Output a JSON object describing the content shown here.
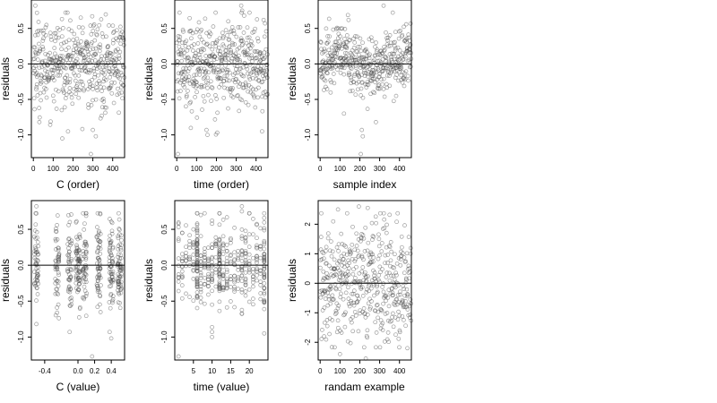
{
  "chart_data": [
    {
      "type": "scatter",
      "xlabel": "C (order)",
      "ylabel": "residuals",
      "xticks": [
        0,
        100,
        200,
        300,
        400
      ],
      "yticks": [
        0.5,
        0.0,
        -0.5,
        -1.0
      ],
      "ytick_labels": [
        "0.5",
        "0.0",
        "-0.5",
        "-1.0"
      ],
      "xlim": [
        -10,
        460
      ],
      "ylim": [
        -1.32,
        0.9
      ],
      "reference_line_y": 0,
      "x_kind": "index",
      "n": 460,
      "sd": 0.3,
      "y_extremes": [
        [
          10,
          0.82
        ],
        [
          18,
          0.72
        ],
        [
          30,
          -0.82
        ],
        [
          175,
          -0.95
        ],
        [
          290,
          -1.27
        ],
        [
          300,
          -0.93
        ],
        [
          315,
          -1.02
        ],
        [
          345,
          -0.73
        ]
      ]
    },
    {
      "type": "scatter",
      "xlabel": "time (order)",
      "ylabel": "residuals",
      "xticks": [
        0,
        100,
        200,
        300,
        400
      ],
      "yticks": [
        0.5,
        0.0,
        -0.5,
        -1.0
      ],
      "ytick_labels": [
        "0.5",
        "0.0",
        "-0.5",
        "-1.0"
      ],
      "xlim": [
        -10,
        460
      ],
      "ylim": [
        -1.32,
        0.9
      ],
      "reference_line_y": 0,
      "x_kind": "index",
      "n": 460,
      "sd": 0.3,
      "y_extremes": [
        [
          6,
          -1.27
        ],
        [
          150,
          -0.93
        ],
        [
          155,
          -1.0
        ],
        [
          325,
          0.82
        ],
        [
          330,
          0.75
        ],
        [
          430,
          -0.95
        ],
        [
          260,
          0.6
        ]
      ]
    },
    {
      "type": "scatter",
      "xlabel": "sample index",
      "ylabel": "residuals",
      "xticks": [
        0,
        100,
        200,
        300,
        400
      ],
      "yticks": [
        0.5,
        0.0,
        -0.5,
        -1.0
      ],
      "ytick_labels": [
        "0.5",
        "0.0",
        "-0.5",
        "-1.0"
      ],
      "xlim": [
        -10,
        460
      ],
      "ylim": [
        -1.32,
        0.9
      ],
      "reference_line_y": 0,
      "x_kind": "index_trend",
      "n": 460,
      "sd": 0.22,
      "y_extremes": [
        [
          205,
          -1.27
        ],
        [
          210,
          -0.93
        ],
        [
          215,
          -1.02
        ],
        [
          320,
          0.82
        ],
        [
          380,
          0.45
        ],
        [
          120,
          -0.7
        ]
      ]
    },
    {
      "type": "scatter",
      "xlabel": "C (value)",
      "ylabel": "residuals",
      "xticks": [
        -0.4,
        0.0,
        0.2,
        0.4
      ],
      "xtick_labels": [
        "-0.4",
        "0.0",
        "0.2",
        "0.4"
      ],
      "yticks": [
        0.5,
        0.0,
        -0.5,
        -1.0
      ],
      "ytick_labels": [
        "0.5",
        "0.0",
        "-0.5",
        "-1.0"
      ],
      "xlim": [
        -0.56,
        0.56
      ],
      "ylim": [
        -1.32,
        0.9
      ],
      "reference_line_y": 0,
      "x_kind": "value_clusters",
      "clusters": [
        -0.5,
        -0.25,
        -0.1,
        0.0,
        0.08,
        0.25,
        0.4,
        0.5
      ],
      "n": 460,
      "sd": 0.3,
      "y_extremes": [
        [
          -0.5,
          0.82
        ],
        [
          -0.5,
          0.72
        ],
        [
          -0.1,
          -0.93
        ],
        [
          0.08,
          0.58
        ],
        [
          0.17,
          -1.27
        ],
        [
          0.38,
          -0.93
        ],
        [
          0.4,
          -1.02
        ],
        [
          -0.5,
          -0.82
        ]
      ]
    },
    {
      "type": "scatter",
      "xlabel": "time (value)",
      "ylabel": "residuals",
      "xticks": [
        5,
        10,
        15,
        20
      ],
      "xtick_labels": [
        "5",
        "10",
        "15",
        "20"
      ],
      "yticks": [
        0.5,
        0.0,
        -0.5,
        -1.0
      ],
      "ytick_labels": [
        "0.5",
        "0.0",
        "-0.5",
        "-1.0"
      ],
      "xlim": [
        0,
        25
      ],
      "ylim": [
        -1.32,
        0.9
      ],
      "reference_line_y": 0,
      "x_kind": "value_discrete",
      "discrete_values": [
        1,
        2,
        3,
        4,
        5,
        6,
        7,
        8,
        9,
        10,
        11,
        12,
        13,
        14,
        15,
        16,
        17,
        18,
        19,
        20,
        21,
        22,
        23,
        24
      ],
      "heavy_values": [
        6,
        12,
        24
      ],
      "n": 460,
      "sd": 0.3,
      "y_extremes": [
        [
          1,
          -1.27
        ],
        [
          10,
          -0.93
        ],
        [
          10,
          -1.0
        ],
        [
          18,
          0.82
        ],
        [
          18,
          0.75
        ],
        [
          24,
          -0.95
        ],
        [
          14,
          -0.22
        ]
      ]
    },
    {
      "type": "scatter",
      "xlabel": "randam example",
      "ylabel": "residuals",
      "xticks": [
        0,
        100,
        200,
        300,
        400
      ],
      "yticks": [
        2,
        1,
        0,
        -1,
        -2
      ],
      "ytick_labels": [
        "2",
        "1",
        "0",
        "-1",
        "-2"
      ],
      "xlim": [
        -10,
        460
      ],
      "ylim": [
        -2.6,
        2.8
      ],
      "reference_line_y": 0,
      "x_kind": "index",
      "n": 460,
      "sd": 1.0,
      "y_extremes": [
        [
          195,
          2.6
        ],
        [
          240,
          2.55
        ],
        [
          90,
          2.5
        ],
        [
          100,
          -2.4
        ],
        [
          230,
          -2.55
        ],
        [
          440,
          -2.2
        ],
        [
          20,
          -1.8
        ]
      ]
    }
  ]
}
